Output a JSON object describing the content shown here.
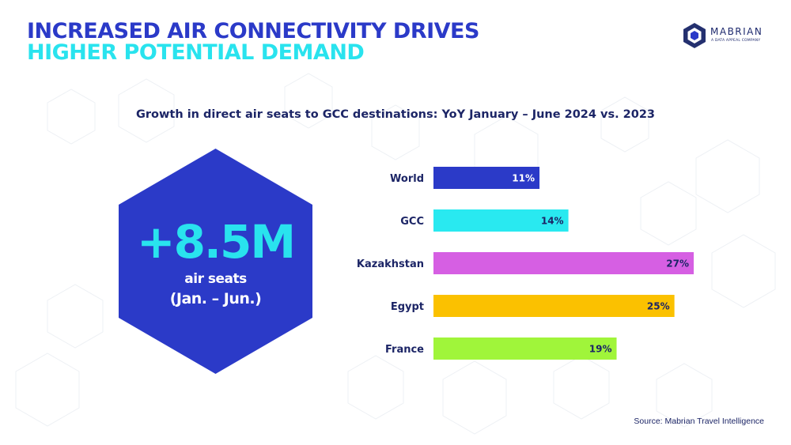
{
  "header": {
    "title_line1": "INCREASED AIR CONNECTIVITY DRIVES",
    "title_line2": "HIGHER POTENTIAL DEMAND"
  },
  "logo": {
    "name": "MABRIAN",
    "tagline": "A DATA APPEAL COMPANY",
    "icon": "hexagon-logo-icon"
  },
  "kpi": {
    "value": "+8.5M",
    "label_line1": "air seats",
    "label_line2": "(Jan. – Jun.)",
    "color": "#2b3ac8",
    "value_color": "#29e3ee"
  },
  "chart_data": {
    "type": "bar",
    "orientation": "horizontal",
    "title": "Growth in direct air seats to GCC destinations: YoY January – June 2024 vs. 2023",
    "categories": [
      "World",
      "GCC",
      "Kazakhstan",
      "Egypt",
      "France"
    ],
    "values": [
      11,
      14,
      27,
      25,
      19
    ],
    "value_labels": [
      "11%",
      "14%",
      "27%",
      "25%",
      "19%"
    ],
    "colors": [
      "#2b3ac8",
      "#29e9f0",
      "#d65fe3",
      "#fbc100",
      "#a0f53a"
    ],
    "label_colors": [
      "#ffffff",
      "#1c2566",
      "#1c2566",
      "#1c2566",
      "#1c2566"
    ],
    "unit": "%",
    "xlim": [
      0,
      27
    ],
    "grid": false,
    "legend": "none"
  },
  "source": "Source: Mabrian Travel Intelligence"
}
